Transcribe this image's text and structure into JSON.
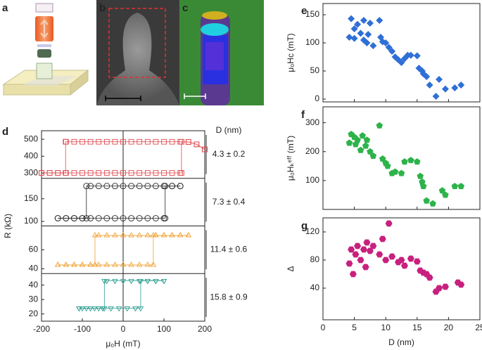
{
  "panel_labels": [
    "a",
    "b",
    "c",
    "d",
    "e",
    "f",
    "g"
  ],
  "chart_data": [
    {
      "type": "hysteresis",
      "xlim": [
        -200,
        200
      ],
      "xticks": [
        -200,
        -100,
        0,
        100,
        200
      ],
      "xlabel": "μ₀H (mT)",
      "ylabel": "R (kΩ)",
      "annotation_title": "D (nm)",
      "subplots": [
        {
          "annotation": "4.3 ± 0.2",
          "color": "#e0474c",
          "marker": "square",
          "ylim": [
            270,
            550
          ],
          "yticks": [
            300,
            400,
            500
          ],
          "series": [
            {
              "x": [
                -200,
                -180,
                -160,
                -140,
                -120,
                -100,
                -80,
                -60,
                -40,
                -20,
                0,
                20,
                40,
                60,
                80,
                100,
                120,
                140,
                143,
                143,
                160,
                180,
                200
              ],
              "values": [
                302,
                302,
                302,
                302,
                302,
                302,
                302,
                302,
                302,
                302,
                302,
                302,
                302,
                302,
                302,
                302,
                302,
                302,
                302,
                485,
                484,
                470,
                440
              ]
            },
            {
              "x": [
                200,
                180,
                160,
                140,
                120,
                100,
                80,
                60,
                40,
                20,
                0,
                -20,
                -40,
                -60,
                -80,
                -100,
                -120,
                -140,
                -141,
                -141,
                -160,
                -180,
                -200
              ],
              "values": [
                440,
                470,
                484,
                485,
                485,
                485,
                485,
                485,
                485,
                485,
                485,
                485,
                485,
                485,
                485,
                485,
                485,
                485,
                485,
                302,
                302,
                302,
                302
              ]
            }
          ]
        },
        {
          "annotation": "7.3 ± 0.4",
          "color": "#222222",
          "marker": "circle",
          "ylim": [
            90,
            195
          ],
          "yticks": [
            100,
            150
          ],
          "series": [
            {
              "x": [
                -160,
                -140,
                -120,
                -100,
                -80,
                -60,
                -40,
                -20,
                0,
                20,
                40,
                60,
                80,
                100,
                103,
                103,
                120,
                140
              ],
              "values": [
                107,
                107,
                107,
                107,
                107,
                107,
                107,
                107,
                107,
                107,
                107,
                107,
                107,
                107,
                107,
                178,
                178,
                178
              ]
            },
            {
              "x": [
                140,
                120,
                100,
                80,
                60,
                40,
                20,
                0,
                -20,
                -40,
                -60,
                -80,
                -90,
                -90,
                -100,
                -120,
                -140,
                -160
              ],
              "values": [
                178,
                178,
                178,
                178,
                178,
                178,
                178,
                178,
                178,
                178,
                178,
                178,
                178,
                107,
                107,
                107,
                107,
                107
              ]
            }
          ]
        },
        {
          "annotation": "11.4 ± 0.6",
          "color": "#f0a030",
          "marker": "triangle-up",
          "ylim": [
            35,
            85
          ],
          "yticks": [
            40,
            60
          ],
          "series": [
            {
              "x": [
                -160,
                -140,
                -120,
                -100,
                -80,
                -60,
                -40,
                -20,
                0,
                20,
                40,
                60,
                74,
                74,
                80,
                100,
                120,
                140,
                160
              ],
              "values": [
                44,
                44,
                44,
                44,
                44,
                44,
                44,
                44,
                44,
                44,
                44,
                44,
                44,
                75,
                75,
                75,
                75,
                75,
                75
              ]
            },
            {
              "x": [
                160,
                140,
                120,
                100,
                80,
                60,
                40,
                20,
                0,
                -20,
                -40,
                -60,
                -69,
                -69,
                -80,
                -100,
                -120,
                -140,
                -160
              ],
              "values": [
                75,
                75,
                75,
                75,
                75,
                75,
                75,
                75,
                75,
                75,
                75,
                75,
                75,
                44,
                44,
                44,
                44,
                44,
                44
              ]
            }
          ]
        },
        {
          "annotation": "15.8 ± 0.9",
          "color": "#2a9d8f",
          "marker": "triangle-down",
          "ylim": [
            15,
            48
          ],
          "yticks": [
            20,
            30,
            40
          ],
          "series": [
            {
              "x": [
                -108,
                -90,
                -70,
                -50,
                -30,
                -10,
                10,
                30,
                43,
                43,
                60,
                80,
                100
              ],
              "values": [
                24,
                24,
                24,
                24,
                24,
                24,
                24,
                24,
                24,
                43,
                43,
                43,
                43
              ]
            },
            {
              "x": [
                100,
                80,
                60,
                40,
                20,
                0,
                -20,
                -40,
                -46,
                -46,
                -60,
                -80,
                -100,
                -108
              ],
              "values": [
                43,
                43,
                43,
                43,
                43,
                43,
                43,
                43,
                43,
                24,
                24,
                24,
                24,
                24
              ]
            }
          ]
        }
      ]
    },
    {
      "type": "scatter",
      "ylabel": "μ₀Hc (mT)",
      "color": "#2f6fd6",
      "marker": "diamond",
      "xlim": [
        0,
        25
      ],
      "xticks": [
        0,
        5,
        10,
        15,
        20,
        25
      ],
      "ylim": [
        -5,
        170
      ],
      "yticks": [
        0,
        50,
        100,
        150
      ],
      "x": [
        4.2,
        4.5,
        5,
        5,
        5.5,
        6,
        6.5,
        6.5,
        7,
        7.2,
        7.5,
        8,
        9,
        9.2,
        9.5,
        10,
        10.5,
        11,
        11.5,
        12,
        12.5,
        13,
        13.5,
        14,
        15,
        15.3,
        15.8,
        16,
        16.5,
        17,
        18,
        18.5,
        19.5,
        21,
        22
      ],
      "values": [
        110,
        143,
        125,
        108,
        133,
        117,
        140,
        105,
        100,
        115,
        135,
        95,
        140,
        110,
        102,
        100,
        92,
        85,
        75,
        70,
        65,
        72,
        78,
        78,
        77,
        55,
        50,
        45,
        40,
        25,
        5,
        35,
        18,
        20,
        25
      ]
    },
    {
      "type": "scatter",
      "ylabel": "μ₀Hₖᵉᶠᶠ (mT)",
      "color": "#2db34a",
      "marker": "pentagon",
      "xlim": [
        0,
        25
      ],
      "xticks": [
        0,
        5,
        10,
        15,
        20,
        25
      ],
      "ylim": [
        0,
        355
      ],
      "yticks": [
        100,
        200,
        300
      ],
      "x": [
        4.2,
        4.5,
        5,
        5.2,
        5.5,
        6,
        6.3,
        6.8,
        7,
        7.5,
        8,
        9,
        9.5,
        10,
        10.3,
        11,
        11.5,
        12.5,
        13,
        14,
        15,
        15.5,
        15.8,
        16,
        16.5,
        17.5,
        19,
        19.5,
        21,
        22
      ],
      "values": [
        230,
        260,
        250,
        225,
        240,
        205,
        255,
        220,
        240,
        200,
        185,
        290,
        175,
        160,
        150,
        125,
        130,
        125,
        165,
        170,
        165,
        115,
        95,
        80,
        30,
        20,
        65,
        50,
        80,
        80
      ]
    },
    {
      "type": "scatter",
      "ylabel": "Δ",
      "xlabel": "D (nm)",
      "color": "#c8207e",
      "marker": "hexagon",
      "xlim": [
        0,
        25
      ],
      "xticks": [
        0,
        5,
        10,
        15,
        20,
        25
      ],
      "ylim": [
        -5,
        140
      ],
      "yticks": [
        40,
        80,
        120
      ],
      "x": [
        4.2,
        4.5,
        4.8,
        5.2,
        5.5,
        6,
        6.5,
        6.8,
        7,
        7.5,
        8,
        9,
        9.5,
        10,
        10.5,
        11,
        12,
        12.5,
        13,
        14,
        15,
        15.5,
        16,
        16.5,
        17,
        18,
        18.5,
        19.5,
        21.5,
        22
      ],
      "values": [
        75,
        95,
        60,
        88,
        100,
        80,
        95,
        70,
        105,
        93,
        100,
        88,
        110,
        80,
        132,
        85,
        77,
        80,
        72,
        82,
        78,
        65,
        62,
        60,
        55,
        35,
        40,
        42,
        48,
        45
      ]
    }
  ]
}
